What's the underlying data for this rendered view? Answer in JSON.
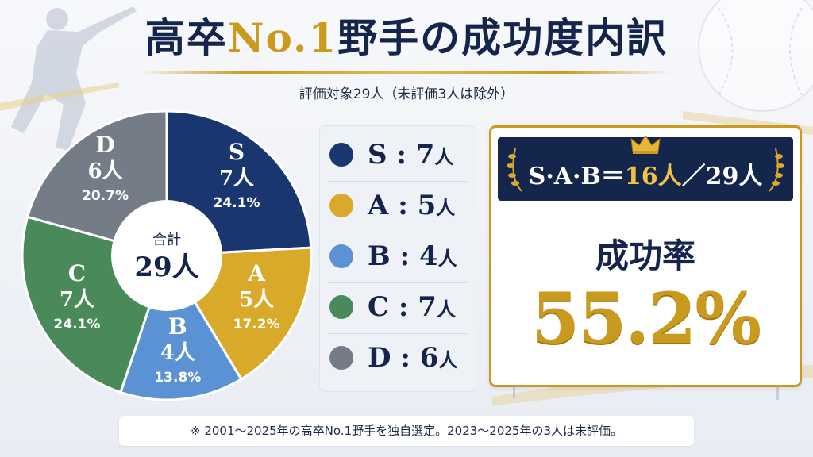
{
  "title": {
    "pre": "高卒",
    "highlight": "No.1",
    "post": "野手の成功度内訳"
  },
  "subtitle": "評価対象29人（未評価3人は除外）",
  "colors": {
    "S": "#1a3670",
    "A": "#d9a92a",
    "B": "#5b92d4",
    "C": "#4a8a5a",
    "D": "#737c87",
    "gold": "#c99a1e",
    "navy": "#15264d"
  },
  "chart_data": {
    "type": "pie",
    "slices": [
      {
        "label": "S",
        "count": "7人",
        "value": 7,
        "percent": "24.1%"
      },
      {
        "label": "A",
        "count": "5人",
        "value": 5,
        "percent": "17.2%"
      },
      {
        "label": "B",
        "count": "4人",
        "value": 4,
        "percent": "13.8%"
      },
      {
        "label": "C",
        "count": "7人",
        "value": 7,
        "percent": "24.1%"
      },
      {
        "label": "D",
        "count": "6人",
        "value": 6,
        "percent": "20.7%"
      }
    ],
    "center_label": "合計",
    "center_value": "29人"
  },
  "legend": [
    {
      "label": "S",
      "value": "7",
      "unit": "人"
    },
    {
      "label": "A",
      "value": "5",
      "unit": "人"
    },
    {
      "label": "B",
      "value": "4",
      "unit": "人"
    },
    {
      "label": "C",
      "value": "7",
      "unit": "人"
    },
    {
      "label": "D",
      "value": "6",
      "unit": "人"
    }
  ],
  "summary": {
    "banner_pre": "S·A·B＝",
    "banner_hl": "16人",
    "banner_post": "／29人",
    "label": "成功率",
    "value": "55.2%"
  },
  "footnote": "※ 2001〜2025年の高卒No.1野手を独自選定。2023〜2025年の3人は未評価。"
}
